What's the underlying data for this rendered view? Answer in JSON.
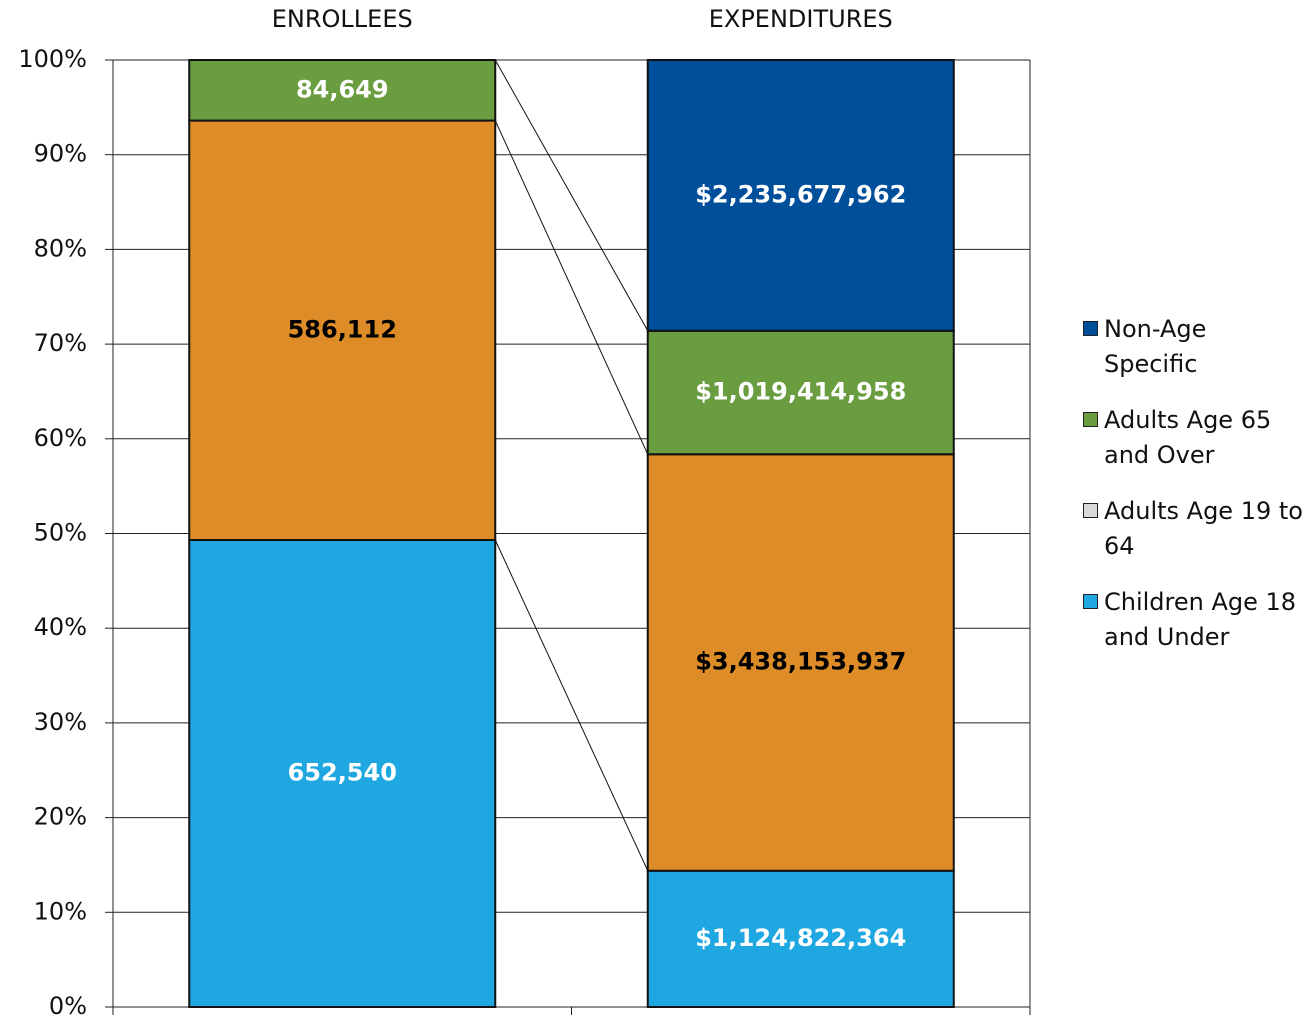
{
  "chart_data": {
    "type": "stacked_percent_bar",
    "categories": [
      "ENROLLEES",
      "EXPENDITURES"
    ],
    "series": [
      {
        "name": "Children Age 18 and Under",
        "color": "#1ea7e0",
        "label_color": "#ffffff",
        "values": [
          652540,
          1124822364
        ],
        "value_labels": [
          "652,540",
          "$1,124,822,364"
        ]
      },
      {
        "name": "Adults Age 19 to 64",
        "color": "#dd8c27",
        "legend_color": "#d9d9d9",
        "label_color": "#000000",
        "values": [
          586112,
          3438153937
        ],
        "value_labels": [
          "586,112",
          "$3,438,153,937"
        ]
      },
      {
        "name": "Adults Age 65 and Over",
        "color": "#6a9d3f",
        "label_color": "#ffffff",
        "values": [
          84649,
          1019414958
        ],
        "value_labels": [
          "84,649",
          "$1,019,414,958"
        ]
      },
      {
        "name": "Non-Age Specific",
        "color": "#004f9b",
        "label_color": "#ffffff",
        "values": [
          null,
          2235677962
        ],
        "value_labels": [
          null,
          "$2,235,677,962"
        ]
      }
    ],
    "ylim": [
      0,
      100
    ],
    "yticks": [
      {
        "value": 0,
        "label": "0%"
      },
      {
        "value": 10,
        "label": "10%"
      },
      {
        "value": 20,
        "label": "20%"
      },
      {
        "value": 30,
        "label": "30%"
      },
      {
        "value": 40,
        "label": "40%"
      },
      {
        "value": 50,
        "label": "50%"
      },
      {
        "value": 60,
        "label": "60%"
      },
      {
        "value": 70,
        "label": "70%"
      },
      {
        "value": 80,
        "label": "80%"
      },
      {
        "value": 90,
        "label": "90%"
      },
      {
        "value": 100,
        "label": "100%"
      }
    ],
    "grid": true,
    "series_lines": true,
    "legend": "right"
  }
}
